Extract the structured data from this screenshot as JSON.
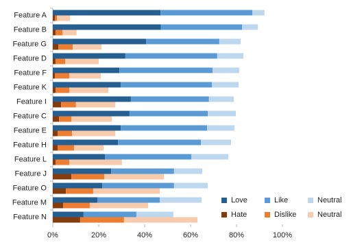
{
  "chart_data": {
    "type": "bar",
    "orientation": "horizontal",
    "categories": [
      "Feature A",
      "Feature B",
      "Feature G",
      "Feature D",
      "Feature F",
      "Feature K",
      "Feature I",
      "Feature C",
      "Feature E",
      "Feature H",
      "Feature L",
      "Feature J",
      "Feature O",
      "Feature M",
      "Feature N"
    ],
    "stacks": [
      {
        "series": [
          {
            "name": "Love",
            "color": "#255e91",
            "values": [
              46.9,
              47,
              40.6,
              31.6,
              29,
              29.6,
              34,
              33.4,
              29.6,
              28.4,
              22.7,
              25.4,
              21.5,
              19.4,
              13.4
            ]
          },
          {
            "name": "Like",
            "color": "#5b9bd5",
            "values": [
              40,
              35.4,
              31.9,
              40,
              40.6,
              39.7,
              34,
              34.1,
              37.6,
              36.1,
              37.6,
              27.4,
              31.3,
              27.2,
              23
            ]
          },
          {
            "name": "Neutral",
            "color": "#bdd7ee",
            "values": [
              5.3,
              6.9,
              9.3,
              11.4,
              11.6,
              11.6,
              10.8,
              12.2,
              11.9,
              13.1,
              16.1,
              12.3,
              14.7,
              18.2,
              16.1
            ]
          }
        ]
      },
      {
        "series": [
          {
            "name": "Hate",
            "color": "#843c0c",
            "values": [
              1,
              1.2,
              2.4,
              1.2,
              0.9,
              1.2,
              3.6,
              2.7,
              2.1,
              2.1,
              1.2,
              8.1,
              5.7,
              4.5,
              11.9
            ]
          },
          {
            "name": "Dislike",
            "color": "#ed7d31",
            "values": [
              0.8,
              3,
              6.3,
              4.2,
              6.3,
              6,
              6.5,
              5.4,
              6.3,
              7.2,
              6,
              14.3,
              11.9,
              11.6,
              19.1
            ]
          },
          {
            "name": "Neutral",
            "color": "#f8cbad",
            "values": [
              5.7,
              6.2,
              12.5,
              14.6,
              13.7,
              17,
              17.1,
              17.6,
              18.8,
              12.8,
              22.9,
              26,
              29,
              25.4,
              32
            ]
          }
        ]
      }
    ],
    "xlim": [
      0,
      100
    ],
    "xticks": [
      {
        "value": 0,
        "label": "0%"
      },
      {
        "value": 20,
        "label": "20%"
      },
      {
        "value": 40,
        "label": "40%"
      },
      {
        "value": 60,
        "label": "60%"
      },
      {
        "value": 80,
        "label": "80%"
      },
      {
        "value": 100,
        "label": "100%"
      }
    ],
    "legend": "lower right"
  }
}
